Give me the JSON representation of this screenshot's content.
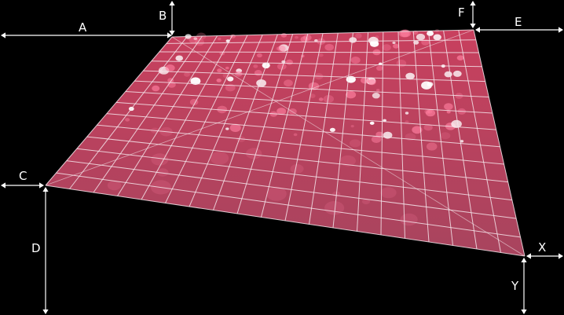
{
  "labels": {
    "a": "A",
    "b": "B",
    "c": "C",
    "d": "D",
    "e": "E",
    "f": "F",
    "x": "X",
    "y": "Y"
  },
  "colors": {
    "background": "#000000",
    "plane_top": "#c8405e",
    "plane_bottom": "#a8445e",
    "grid": "#f4e4ea",
    "dimension_lines": "#ffffff",
    "bokeh_white": "#ffffff",
    "bokeh_pink": "#ff7fa0"
  },
  "grid": {
    "columns": 20,
    "rows": 14
  },
  "icons": {
    "arrowheads": "double-headed-arrow"
  }
}
